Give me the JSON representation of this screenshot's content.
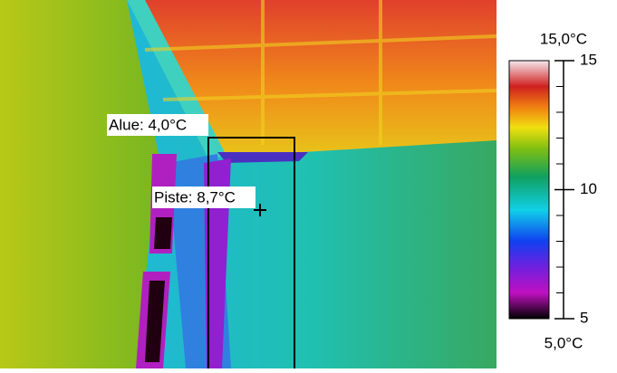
{
  "thermal_image": {
    "measurements": [
      {
        "label": "Alue: 4,0°C"
      },
      {
        "label": "Piste: 8,7°C"
      }
    ]
  },
  "colorbar": {
    "max_label": "15,0°C",
    "min_label": "5,0°C",
    "lim": [
      5,
      15
    ],
    "ticks": [
      5,
      10,
      15
    ],
    "minor_ticks": [
      6,
      7,
      8,
      9,
      11,
      12,
      13,
      14
    ]
  }
}
